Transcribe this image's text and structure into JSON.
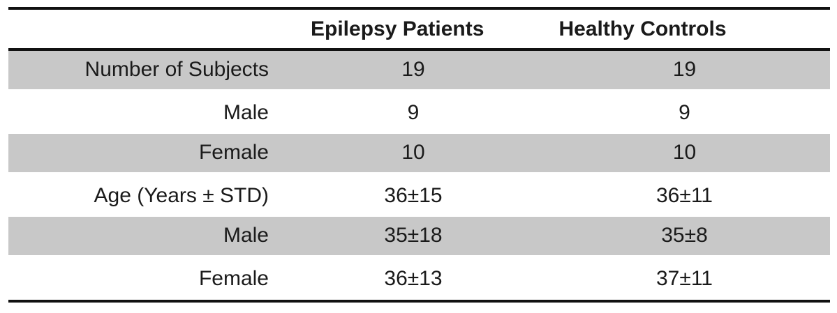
{
  "table": {
    "columns": [
      "",
      "Epilepsy Patients",
      "Healthy Controls"
    ],
    "rows": [
      {
        "label": "Number of Subjects",
        "epilepsy": "19",
        "healthy": "19"
      },
      {
        "label": "Male",
        "epilepsy": "9",
        "healthy": "9"
      },
      {
        "label": "Female",
        "epilepsy": "10",
        "healthy": "10"
      },
      {
        "label": "Age (Years ± STD)",
        "epilepsy": "36±15",
        "healthy": "36±11"
      },
      {
        "label": "Male",
        "epilepsy": "35±18",
        "healthy": "35±8"
      },
      {
        "label": "Female",
        "epilepsy": "36±13",
        "healthy": "37±11"
      }
    ]
  },
  "colors": {
    "shaded-row": "#c8c8c8",
    "rule": "#111111",
    "text": "#1a1a1a",
    "background": "#ffffff"
  }
}
